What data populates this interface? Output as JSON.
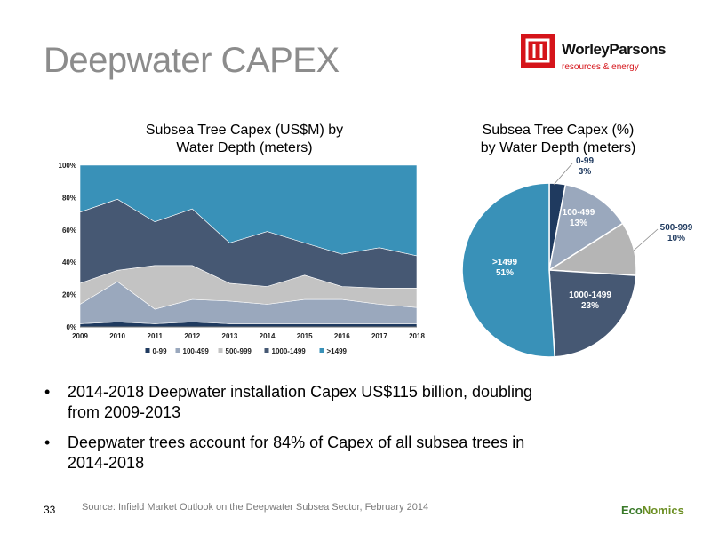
{
  "slide": {
    "title": "Deepwater CAPEX",
    "page_number": "33",
    "source": "Source: Infield Market Outlook on the Deepwater Subsea Sector, February 2014",
    "brand_prefix": "Eco",
    "brand_suffix": "Nomics",
    "logo_name": "WorleyParsons",
    "logo_tagline": "resources & energy",
    "logo_color": "#d5141a"
  },
  "bullets": [
    "2014-2018 Deepwater installation Capex US$115 billion, doubling from 2009-2013",
    "Deepwater trees account for 84% of Capex of all subsea trees in 2014-2018"
  ],
  "chart_data": [
    {
      "type": "area",
      "stacked": true,
      "title_line1": "Subsea Tree Capex (US$M) by",
      "title_line2": "Water Depth (meters)",
      "x": [
        "2009",
        "2010",
        "2011",
        "2012",
        "2013",
        "2014",
        "2015",
        "2016",
        "2017",
        "2018"
      ],
      "y_ticks": [
        "0%",
        "20%",
        "40%",
        "60%",
        "80%",
        "100%"
      ],
      "ylim": [
        0,
        100
      ],
      "legend_position": "bottom",
      "series": [
        {
          "name": "0-99",
          "color": "#1f3a5f",
          "values": [
            2,
            3,
            2,
            3,
            2,
            2,
            2,
            2,
            2,
            2
          ]
        },
        {
          "name": "100-499",
          "color": "#9aa8bd",
          "values": [
            12,
            25,
            9,
            14,
            14,
            12,
            15,
            15,
            12,
            10
          ]
        },
        {
          "name": "500-999",
          "color": "#c3c3c3",
          "values": [
            13,
            7,
            27,
            21,
            11,
            11,
            15,
            8,
            10,
            12
          ]
        },
        {
          "name": "1000-1499",
          "color": "#465873",
          "values": [
            44,
            44,
            27,
            35,
            25,
            34,
            20,
            20,
            25,
            20
          ]
        },
        {
          "name": ">1499",
          "color": "#3991b8",
          "values": [
            29,
            21,
            35,
            27,
            48,
            41,
            48,
            55,
            51,
            56
          ]
        }
      ]
    },
    {
      "type": "pie",
      "title_line1": "Subsea Tree Capex (%)",
      "title_line2": "by Water Depth (meters)",
      "slices": [
        {
          "label": "0-99",
          "pct_text": "3%",
          "value": 3,
          "color": "#1f3a5f"
        },
        {
          "label": "100-499",
          "pct_text": "13%",
          "value": 13,
          "color": "#9aa8bd"
        },
        {
          "label": "500-999",
          "pct_text": "10%",
          "value": 10,
          "color": "#b5b5b5"
        },
        {
          "label": "1000-1499",
          "pct_text": "23%",
          "value": 23,
          "color": "#465873"
        },
        {
          "label": ">1499",
          "pct_text": "51%",
          "value": 51,
          "color": "#3991b8"
        }
      ]
    }
  ]
}
